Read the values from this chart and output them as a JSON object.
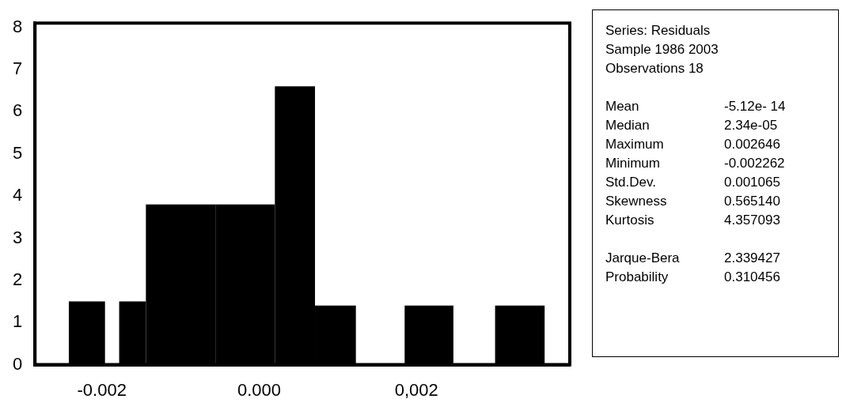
{
  "chart_data": {
    "type": "histogram",
    "bins": [
      -0.00242,
      -0.00196,
      -0.00178,
      -0.00144,
      -0.00055,
      0.0002,
      0.00071,
      0.00123,
      0.00185,
      0.00247,
      0.003,
      0.00363
    ],
    "values": [
      1.5,
      0,
      1.5,
      3.8,
      3.8,
      6.6,
      1.4,
      0,
      1.4,
      0,
      1.4
    ],
    "color": "#000000",
    "xlim": [
      -0.00285,
      0.00395
    ],
    "xticks": [
      -0.002,
      {
        "value": 0,
        "label": "0.000"
      },
      {
        "value": 0.002,
        "label": "0,002"
      }
    ],
    "ylim": [
      0,
      8.1
    ],
    "yticks": [
      0,
      1,
      2,
      3,
      4,
      5,
      6,
      7,
      8
    ],
    "grid": false,
    "legend": false,
    "annotations": [
      "Series: Residuals",
      "Sample 1986 2003",
      "Observations 18",
      "Mean",
      "-5.12e- 14",
      "Median",
      "2.34e-05",
      "Maximum",
      "0.002646",
      "Minimum",
      "-0.002262",
      "Std.Dev.",
      "0.001065",
      "Skewness",
      "0.565140",
      "Kurtosis",
      "4.357093",
      "Jarque-Bera",
      "2.339427",
      "Probability",
      "0.310456"
    ]
  }
}
